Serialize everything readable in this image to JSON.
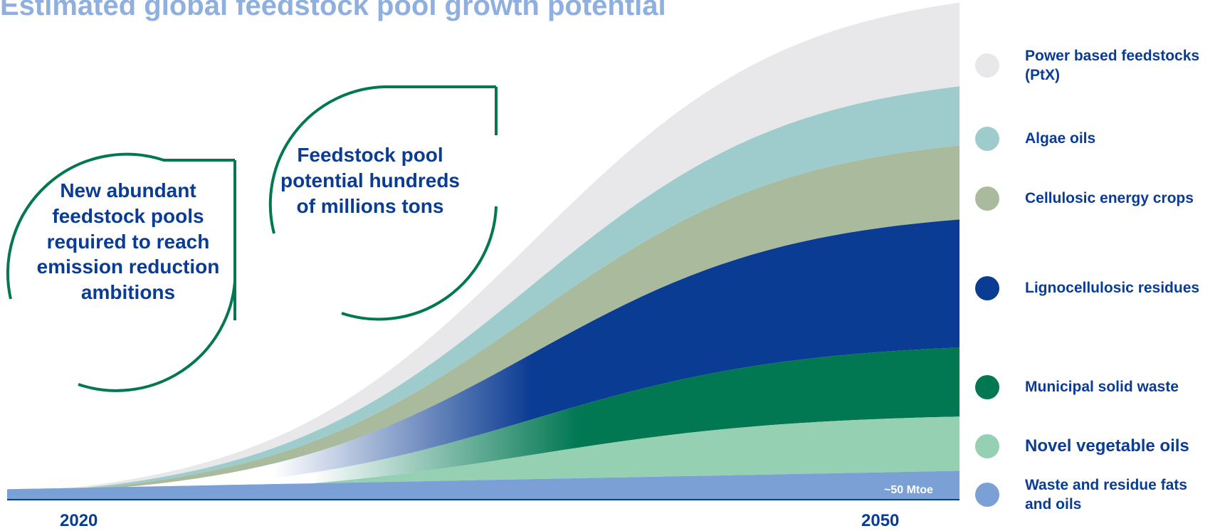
{
  "title": "Estimated global feedstock pool growth potential",
  "callouts": {
    "left": "New abundant feedstock pools required to reach emission reduction ambitions",
    "right": "Feedstock pool potential hundreds of millions tons"
  },
  "chart_data": {
    "type": "area",
    "title": "Estimated global feedstock pool growth potential",
    "x_labels": [
      "2020",
      "2050"
    ],
    "annotation": "~50 Mtoe",
    "stacked": true,
    "series": [
      {
        "name": "Waste and residue fats and oils",
        "color": "#7aa0d6",
        "top_share_2050": 0.05
      },
      {
        "name": "Novel vegetable oils",
        "color": "#95d0b3",
        "top_share_2050": 0.16
      },
      {
        "name": "Municipal solid waste",
        "color": "#017752",
        "top_share_2050": 0.3
      },
      {
        "name": "Lignocellulosic residues",
        "color": "#0b3c93",
        "top_share_2050": 0.56
      },
      {
        "name": "Cellulosic energy crops",
        "color": "#a9bb9c",
        "top_share_2050": 0.71
      },
      {
        "name": "Algae oils",
        "color": "#9ecccd",
        "top_share_2050": 0.83
      },
      {
        "name": "Power based feedstocks (PtX)",
        "color": "#e8e8ea",
        "top_share_2050": 1.0
      }
    ]
  },
  "legend": [
    {
      "label": "Power based feedstocks (PtX)",
      "color": "#e8e8ea",
      "icon": "circle"
    },
    {
      "label": "Algae oils",
      "color": "#9ecccd",
      "icon": "circle"
    },
    {
      "label": "Cellulosic energy crops",
      "color": "#a9bb9c",
      "icon": "circle"
    },
    {
      "label": "Lignocellulosic residues",
      "color": "#0b3c93",
      "icon": "circle"
    },
    {
      "label": "Municipal solid waste",
      "color": "#017752",
      "icon": "circle"
    },
    {
      "label": "Novel vegetable oils",
      "color": "#95d0b3",
      "icon": "circle"
    },
    {
      "label": "Waste and residue fats and oils",
      "color": "#7aa0d6",
      "icon": "circle"
    }
  ],
  "accent_colors": {
    "title": "#8fb0de",
    "text": "#0b3c93",
    "arc": "#017752"
  }
}
